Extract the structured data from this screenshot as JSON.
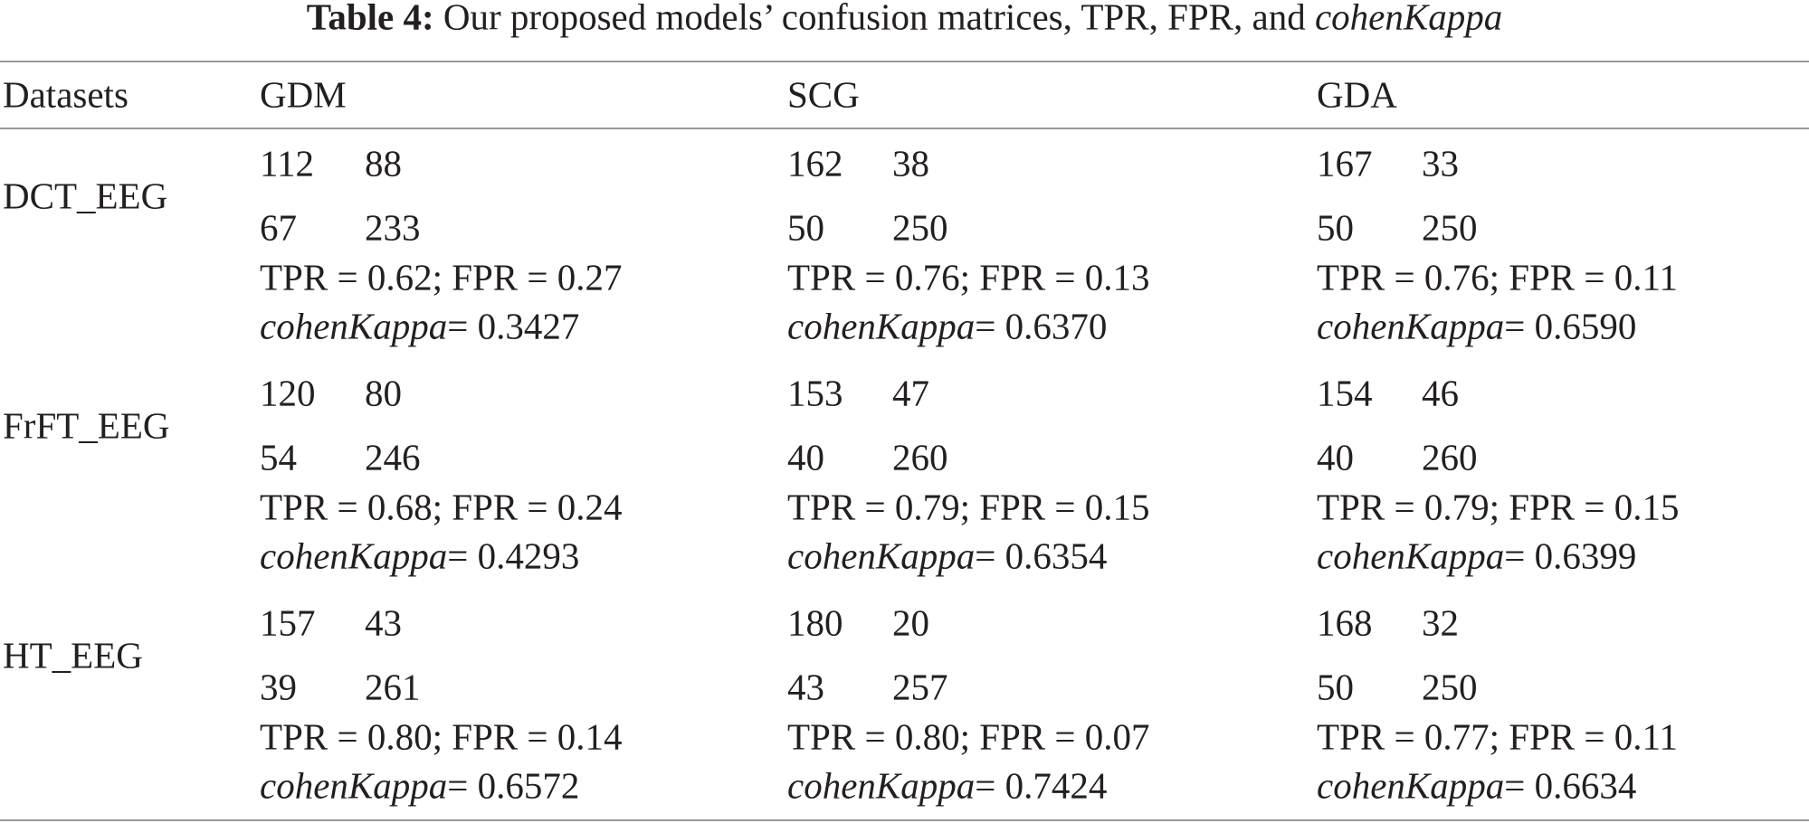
{
  "title": {
    "label": "Table 4:",
    "text": "Our proposed models’ confusion matrices, TPR, FPR, and",
    "emph": "cohenKappa"
  },
  "table": {
    "kappa_label": "cohenKappa",
    "header": [
      "Datasets",
      "GDM",
      "SCG",
      "GDA"
    ],
    "rows": [
      {
        "dataset": "DCT_EEG",
        "cells": [
          {
            "matrix": [
              [
                "112",
                "88"
              ],
              [
                "67",
                "233"
              ]
            ],
            "rates": "TPR = 0.62; FPR = 0.27",
            "kappa": "= 0.3427"
          },
          {
            "matrix": [
              [
                "162",
                "38"
              ],
              [
                "50",
                "250"
              ]
            ],
            "rates": "TPR = 0.76; FPR = 0.13",
            "kappa": "= 0.6370"
          },
          {
            "matrix": [
              [
                "167",
                "33"
              ],
              [
                "50",
                "250"
              ]
            ],
            "rates": "TPR = 0.76; FPR = 0.11",
            "kappa": "= 0.6590"
          }
        ]
      },
      {
        "dataset": "FrFT_EEG",
        "cells": [
          {
            "matrix": [
              [
                "120",
                "80"
              ],
              [
                "54",
                "246"
              ]
            ],
            "rates": "TPR = 0.68; FPR = 0.24",
            "kappa": "= 0.4293"
          },
          {
            "matrix": [
              [
                "153",
                "47"
              ],
              [
                "40",
                "260"
              ]
            ],
            "rates": "TPR = 0.79; FPR = 0.15",
            "kappa": "= 0.6354"
          },
          {
            "matrix": [
              [
                "154",
                "46"
              ],
              [
                "40",
                "260"
              ]
            ],
            "rates": "TPR = 0.79; FPR = 0.15",
            "kappa": "= 0.6399"
          }
        ]
      },
      {
        "dataset": "HT_EEG",
        "cells": [
          {
            "matrix": [
              [
                "157",
                "43"
              ],
              [
                "39",
                "261"
              ]
            ],
            "rates": "TPR = 0.80; FPR = 0.14",
            "kappa": "= 0.6572"
          },
          {
            "matrix": [
              [
                "180",
                "20"
              ],
              [
                "43",
                "257"
              ]
            ],
            "rates": "TPR = 0.80; FPR = 0.07",
            "kappa": "= 0.7424"
          },
          {
            "matrix": [
              [
                "168",
                "32"
              ],
              [
                "50",
                "250"
              ]
            ],
            "rates": "TPR = 0.77; FPR = 0.11",
            "kappa": "= 0.6634"
          }
        ]
      }
    ]
  }
}
